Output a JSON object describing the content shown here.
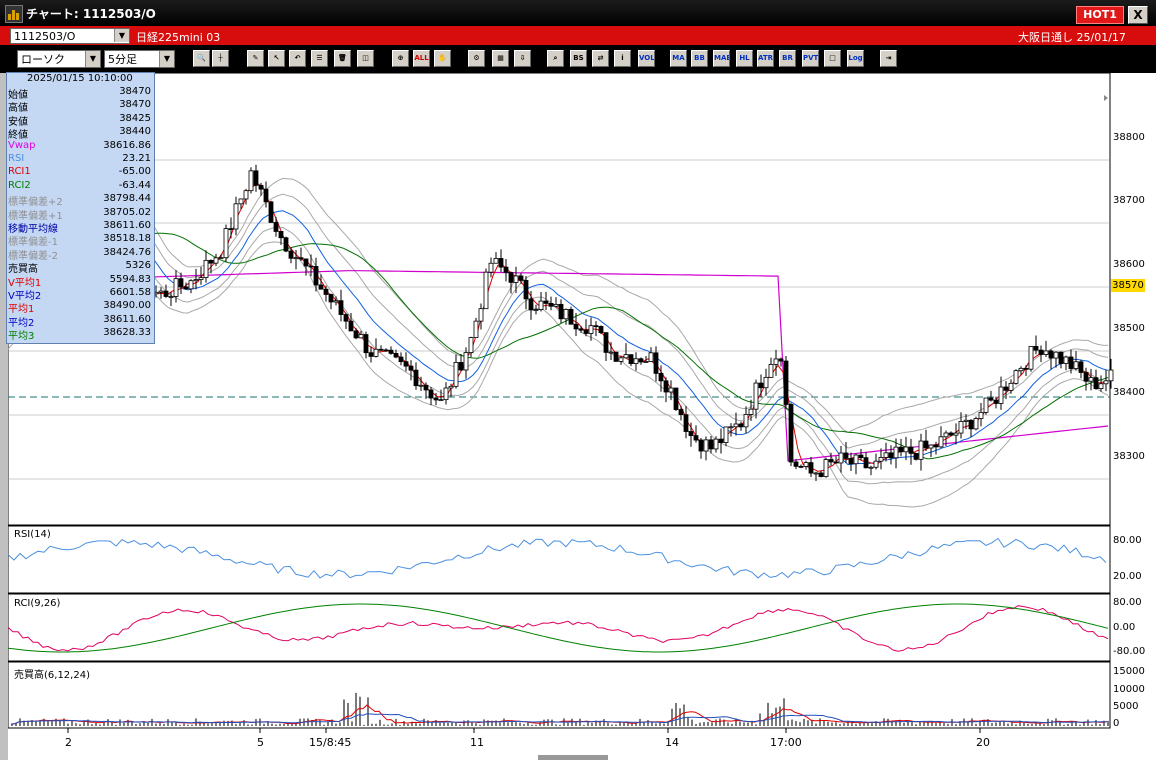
{
  "window": {
    "title": "チャート: 1112503/O",
    "hot_label": "HOT1",
    "close_label": "X"
  },
  "symbol_bar": {
    "symbol": "1112503/O",
    "name": "日経225mini 03",
    "exchange": "大阪日通し 25/01/17"
  },
  "toolbar": {
    "chart_type": "ローソク",
    "period": "5分足",
    "buttons": [
      "search",
      "draw",
      "pencil",
      "cursor",
      "undo",
      "list",
      "trash",
      "fit",
      "zoom",
      "ALL",
      "hand",
      "fx",
      "grad",
      "download",
      "find",
      "BS",
      "arrows",
      "info",
      "VOL",
      "MA",
      "BB",
      "MAE",
      "HL",
      "ATR",
      "BR",
      "PVT",
      "box",
      "Log",
      "exit"
    ]
  },
  "info": {
    "datetime": "2025/01/15 10:10:00",
    "rows": [
      {
        "label": "始値",
        "value": "38470",
        "color": "#000000"
      },
      {
        "label": "高値",
        "value": "38470",
        "color": "#000000"
      },
      {
        "label": "安値",
        "value": "38425",
        "color": "#000000"
      },
      {
        "label": "終値",
        "value": "38440",
        "color": "#000000"
      },
      {
        "label": "Vwap",
        "value": "38616.86",
        "color": "#e000e0"
      },
      {
        "label": "RSI",
        "value": "23.21",
        "color": "#4a90e0"
      },
      {
        "label": "RCI1",
        "value": "-65.00",
        "color": "#e00000"
      },
      {
        "label": "RCI2",
        "value": "-63.44",
        "color": "#008000"
      },
      {
        "label": "標準偏差+2",
        "value": "38798.44",
        "color": "#909090"
      },
      {
        "label": "標準偏差+1",
        "value": "38705.02",
        "color": "#909090"
      },
      {
        "label": "移動平均線",
        "value": "38611.60",
        "color": "#0000a0"
      },
      {
        "label": "標準偏差-1",
        "value": "38518.18",
        "color": "#909090"
      },
      {
        "label": "標準偏差-2",
        "value": "38424.76",
        "color": "#909090"
      },
      {
        "label": "売買高",
        "value": "5326",
        "color": "#000000"
      },
      {
        "label": "V平均1",
        "value": "5594.83",
        "color": "#e00000"
      },
      {
        "label": "V平均2",
        "value": "6601.58",
        "color": "#0000c0"
      },
      {
        "label": "平均1",
        "value": "38490.00",
        "color": "#e00000"
      },
      {
        "label": "平均2",
        "value": "38611.60",
        "color": "#0000c0"
      },
      {
        "label": "平均3",
        "value": "38628.33",
        "color": "#008000"
      }
    ]
  },
  "chart_data": {
    "type": "candlestick",
    "price_axis": {
      "ticks": [
        "38800",
        "38700",
        "38600",
        "38500",
        "38400",
        "38300"
      ],
      "ylim": [
        38220,
        38920
      ]
    },
    "current_price": "38570",
    "x_ticks": [
      "2",
      "5",
      "15/8:45",
      "11",
      "14",
      "17:00",
      "20"
    ],
    "rsi": {
      "title": "RSI(14)",
      "ticks": [
        "80.00",
        "20.00"
      ]
    },
    "rci": {
      "title": "RCI(9,26)",
      "ticks": [
        "80.00",
        "0.00",
        "-80.00"
      ]
    },
    "volume": {
      "title": "売買高(6,12,24)",
      "ticks": [
        "15000",
        "10000",
        "5000",
        "0"
      ]
    },
    "colors": {
      "bb": "#a8a8a8",
      "ma_short": "#e00000",
      "ma_mid": "#1060e0",
      "ma_long": "#007000",
      "vwap": "#d000d0",
      "rsi": "#4a90e0",
      "rci1": "#e00060",
      "rci2": "#008000"
    }
  }
}
